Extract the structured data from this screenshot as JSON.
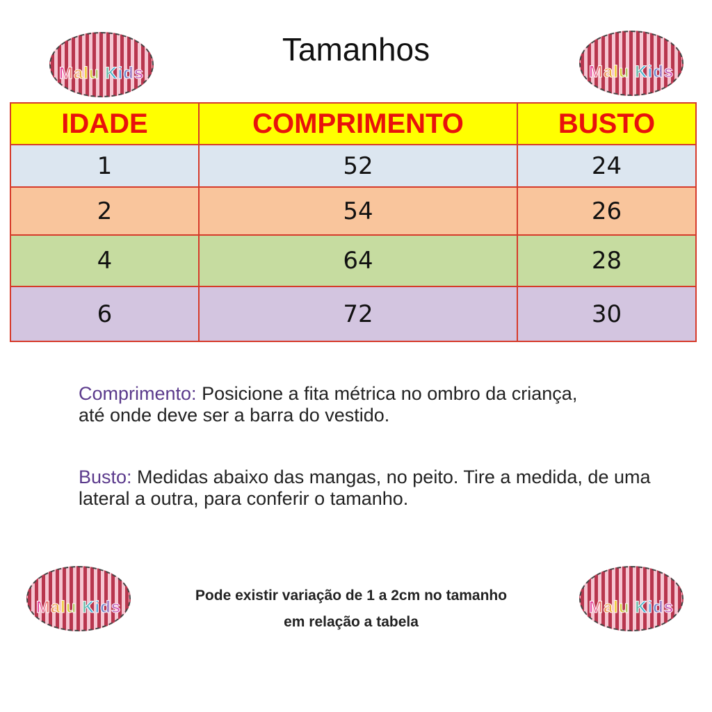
{
  "title": "Tamanhos",
  "logo_text": "Malu Kids",
  "table": {
    "headers": [
      "IDADE",
      "COMPRIMENTO",
      "BUSTO"
    ],
    "row_colors": [
      "#dce6f0",
      "#f9c59c",
      "#c6dca0",
      "#d3c5e0"
    ],
    "rows": [
      [
        "1",
        "52",
        "24"
      ],
      [
        "2",
        "54",
        "26"
      ],
      [
        "4",
        "64",
        "28"
      ],
      [
        "6",
        "72",
        "30"
      ]
    ]
  },
  "notes": {
    "comprimento_label": "Comprimento:",
    "comprimento_text": " Posicione a fita métrica no ombro da criança, até onde deve ser a barra do vestido.",
    "busto_label": "Busto:",
    "busto_text": " Medidas abaixo das mangas, no peito. Tire a medida, de uma lateral a outra, para conferir o tamanho."
  },
  "footer": {
    "line1": "Pode existir variação de 1 a 2cm no tamanho",
    "line2": "em relação a tabela"
  }
}
